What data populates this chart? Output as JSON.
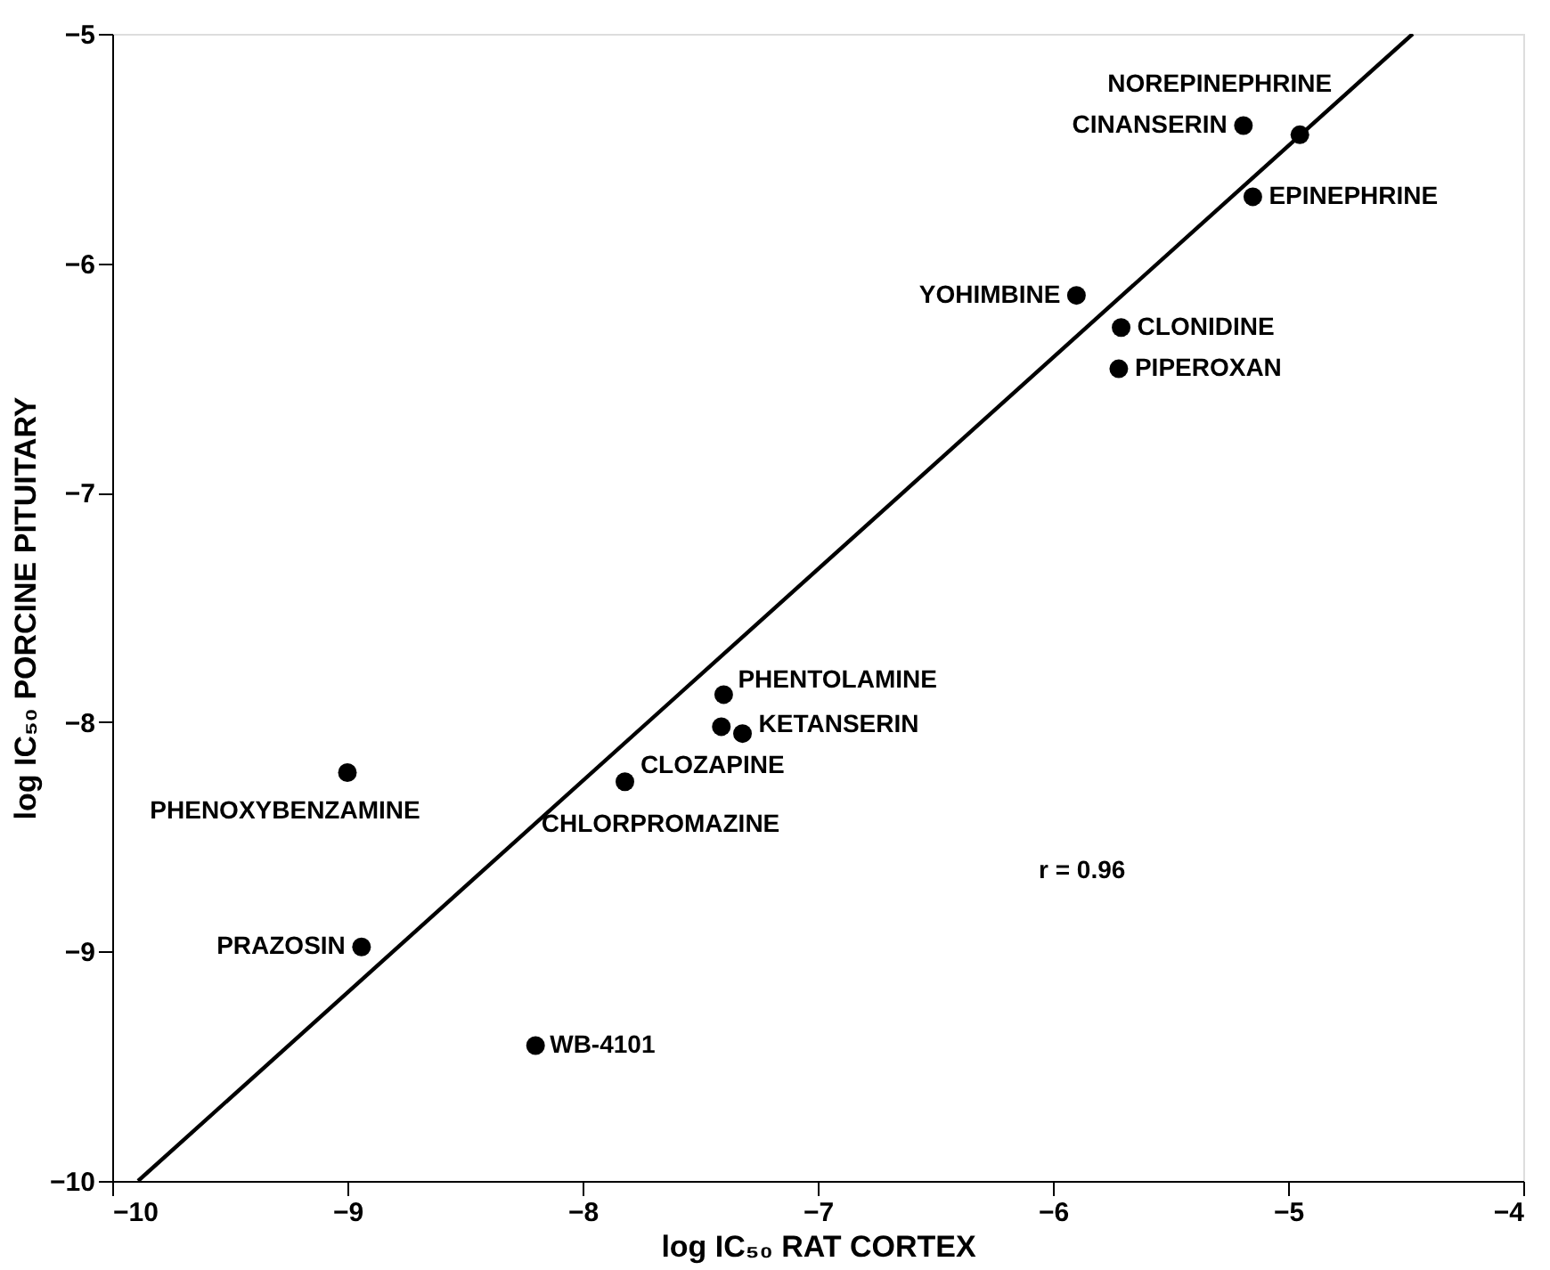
{
  "chart_data": {
    "type": "scatter",
    "xlabel": "log IC₅₀ RAT CORTEX",
    "ylabel": "log IC₅₀ PORCINE PITUITARY",
    "xlim": [
      -10,
      -4
    ],
    "ylim": [
      -10,
      -5
    ],
    "xticks": [
      -10,
      -9,
      -8,
      -7,
      -6,
      -5,
      -4
    ],
    "yticks": [
      -10,
      -9,
      -8,
      -7,
      -6,
      -5
    ],
    "grid": false,
    "marker": "circle",
    "series": [
      {
        "color": "#000000",
        "x": [
          -4.95,
          -5.19,
          -5.15,
          -5.9,
          -5.71,
          -5.72,
          -7.4,
          -7.41,
          -7.32,
          -7.82,
          -9.0,
          -8.94,
          -8.2
        ],
        "values": [
          -5.44,
          -5.4,
          -5.71,
          -6.14,
          -6.28,
          -6.46,
          -7.88,
          -8.02,
          -8.05,
          -8.26,
          -8.22,
          -8.98,
          -9.41
        ]
      },
      {
        "type": "line",
        "color": "#000000",
        "x": [
          -9.89,
          -4.47
        ],
        "values": [
          -10,
          -5
        ],
        "line_style": "solid",
        "marker": "none"
      }
    ],
    "annotations": [
      {
        "text": "NOREPINEPHRINE",
        "x": -4.95,
        "y": -5.44
      },
      {
        "text": "CINANSERIN",
        "x": -5.19,
        "y": -5.4
      },
      {
        "text": "EPINEPHRINE",
        "x": -5.15,
        "y": -5.71
      },
      {
        "text": "YOHIMBINE",
        "x": -5.9,
        "y": -6.14
      },
      {
        "text": "CLONIDINE",
        "x": -5.71,
        "y": -6.28
      },
      {
        "text": "PIPEROXAN",
        "x": -5.72,
        "y": -6.46
      },
      {
        "text": "PHENTOLAMINE",
        "x": -7.4,
        "y": -7.88
      },
      {
        "text": "CLOZAPINE",
        "x": -7.41,
        "y": -8.02
      },
      {
        "text": "KETANSERIN",
        "x": -7.32,
        "y": -8.05
      },
      {
        "text": "CHLORPROMAZINE",
        "x": -7.82,
        "y": -8.26
      },
      {
        "text": "PHENOXYBENZAMINE",
        "x": -9.0,
        "y": -8.22
      },
      {
        "text": "PRAZOSIN",
        "x": -8.94,
        "y": -8.98
      },
      {
        "text": "WB-4101",
        "x": -8.2,
        "y": -9.41
      },
      "r = 0.96"
    ]
  }
}
